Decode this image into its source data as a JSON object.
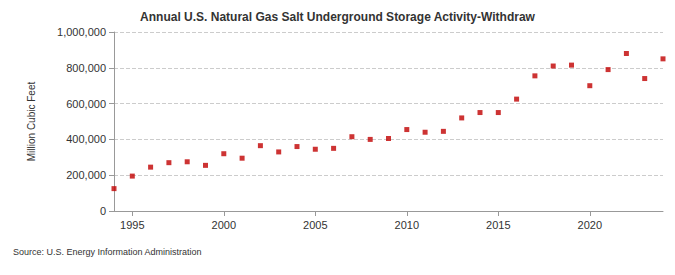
{
  "chart_data": {
    "type": "scatter",
    "title": "Annual U.S. Natural Gas Salt Underground Storage Activity-Withdraw",
    "ylabel": "Million Cubic Feet",
    "source": "Source: U.S. Energy Information Administration",
    "x": [
      1994,
      1995,
      1996,
      1997,
      1998,
      1999,
      2000,
      2001,
      2002,
      2003,
      2004,
      2005,
      2006,
      2007,
      2008,
      2009,
      2010,
      2011,
      2012,
      2013,
      2014,
      2015,
      2016,
      2017,
      2018,
      2019,
      2020,
      2021,
      2022,
      2023,
      2024
    ],
    "values": [
      125000,
      195000,
      245000,
      270000,
      275000,
      255000,
      320000,
      295000,
      365000,
      330000,
      360000,
      345000,
      350000,
      415000,
      400000,
      405000,
      455000,
      440000,
      445000,
      520000,
      550000,
      550000,
      625000,
      755000,
      810000,
      815000,
      700000,
      790000,
      880000,
      740000,
      850000
    ],
    "color": "#c00000",
    "marker": "square",
    "xlim": [
      1994,
      2024
    ],
    "xticks": [
      1995,
      2000,
      2005,
      2010,
      2015,
      2020
    ],
    "ylim": [
      0,
      1000000
    ],
    "yticks": [
      0,
      {
        "value": 200000,
        "label": "200,000"
      },
      {
        "value": 400000,
        "label": "400,000"
      },
      {
        "value": 600000,
        "label": "600,000"
      },
      {
        "value": 800000,
        "label": "800,000"
      },
      {
        "value": 1000000,
        "label": "1,000,000"
      }
    ],
    "grid": true
  }
}
